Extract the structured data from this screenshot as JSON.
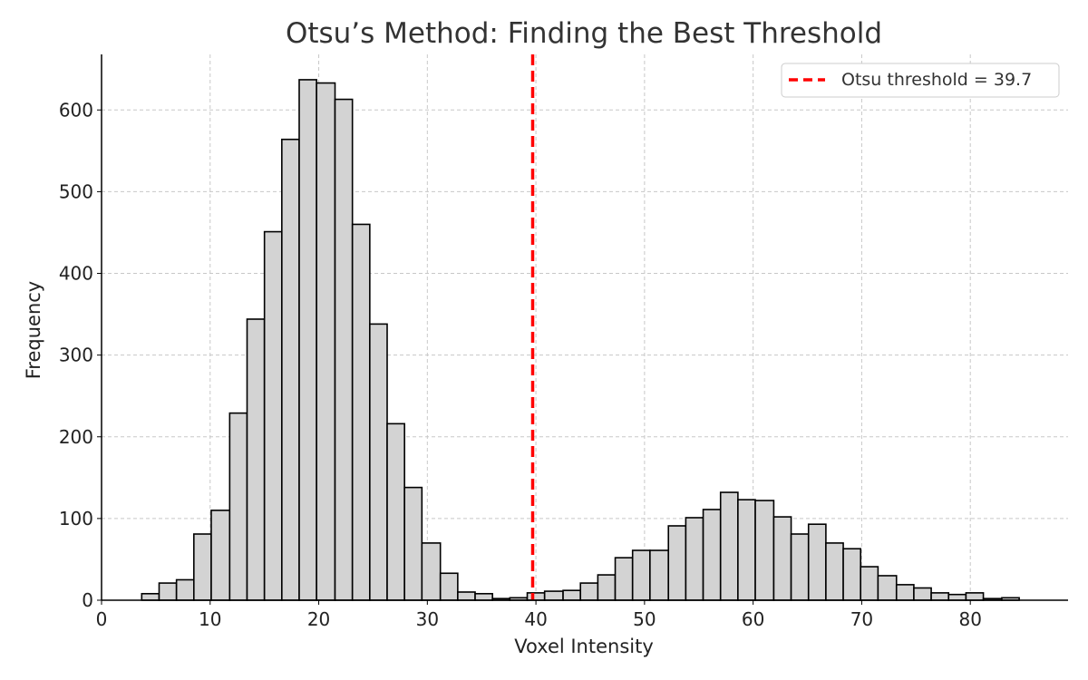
{
  "chart_data": {
    "type": "bar",
    "title": "Otsu’s Method: Finding the Best Threshold",
    "xlabel": "Voxel Intensity",
    "ylabel": "Frequency",
    "xlim": [
      0,
      89
    ],
    "ylim": [
      0,
      668
    ],
    "xticks": [
      0,
      10,
      20,
      30,
      40,
      50,
      60,
      70,
      80
    ],
    "yticks": [
      0,
      100,
      200,
      300,
      400,
      500,
      600
    ],
    "grid": true,
    "legend_position": "top-right",
    "bin_edges": [
      3.7,
      5.3,
      6.9,
      8.5,
      10.1,
      11.8,
      13.4,
      15.0,
      16.6,
      18.2,
      19.8,
      21.5,
      23.1,
      24.7,
      26.3,
      27.9,
      29.5,
      31.2,
      32.8,
      34.4,
      36.0,
      37.6,
      39.2,
      40.8,
      42.5,
      44.1,
      45.7,
      47.3,
      48.9,
      50.5,
      52.2,
      53.8,
      55.4,
      57.0,
      58.6,
      60.2,
      61.9,
      63.5,
      65.1,
      66.7,
      68.3,
      69.9,
      71.5,
      73.2,
      74.8,
      76.4,
      78.0,
      79.6,
      81.2,
      82.9,
      84.5
    ],
    "values": [
      8,
      21,
      25,
      81,
      110,
      229,
      344,
      451,
      564,
      637,
      633,
      613,
      460,
      338,
      216,
      138,
      70,
      33,
      10,
      8,
      2,
      3,
      9,
      11,
      12,
      21,
      31,
      52,
      61,
      61,
      91,
      101,
      111,
      132,
      123,
      122,
      102,
      81,
      93,
      70,
      63,
      41,
      30,
      19,
      15,
      9,
      7,
      9,
      2,
      3
    ],
    "bar_color": "#d3d3d3",
    "bar_edge_color": "#000000",
    "series": [
      {
        "name": "Otsu threshold = 39.7",
        "type": "vline",
        "x": 39.7,
        "color": "#ff0000",
        "style": "dashed"
      }
    ]
  }
}
